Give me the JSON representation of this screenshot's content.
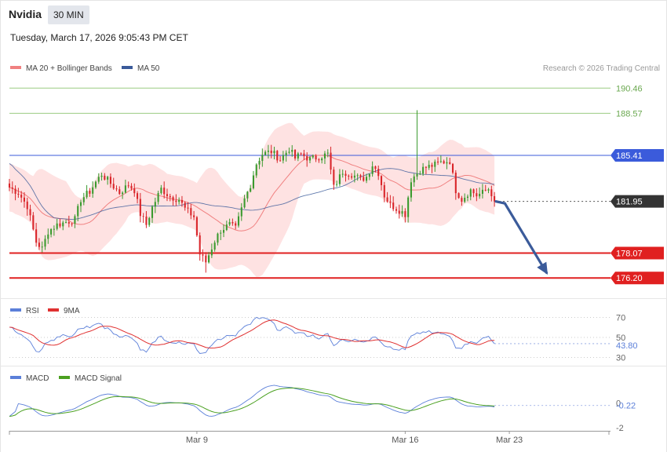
{
  "header": {
    "ticker": "Nvidia",
    "timeframe": "30 MIN",
    "datetime": "Tuesday, March 17, 2026 9:05:43 PM CET"
  },
  "copyright": "Research © 2026 Trading Central",
  "colors": {
    "up": "#3a9a2e",
    "down": "#d9252a",
    "ma20": "#f08080",
    "ma50": "#3a5a9a",
    "band": "#fdd8d8",
    "resistance": "#9ccc82",
    "pivot": "#3b5bdb",
    "support": "#e02020",
    "arrow": "#3b5b9a",
    "rsi": "#5b7fd9",
    "rsi_ma": "#e03030",
    "macd": "#5b7fd9",
    "macd_signal": "#4aa020"
  },
  "chart_data": [
    {
      "type": "candlestick",
      "legend": [
        {
          "label": "MA 20 + Bollinger Bands",
          "color": "#f08080"
        },
        {
          "label": "MA 50",
          "color": "#3a5a9a"
        }
      ],
      "ylim": [
        174.8,
        191.3
      ],
      "xlim": [
        0,
        202
      ],
      "x_ticks": [
        {
          "label": "Mar 9",
          "x": 63
        },
        {
          "label": "Mar 16",
          "x": 133
        },
        {
          "label": "Mar 23",
          "x": 168
        }
      ],
      "levels": [
        {
          "value": 190.46,
          "label": "190.46",
          "kind": "resistance"
        },
        {
          "value": 188.57,
          "label": "188.57",
          "kind": "resistance"
        },
        {
          "value": 185.41,
          "label": "185.41",
          "kind": "pivot"
        },
        {
          "value": 181.95,
          "label": "181.95",
          "kind": "last"
        },
        {
          "value": 178.07,
          "label": "178.07",
          "kind": "support"
        },
        {
          "value": 176.2,
          "label": "176.20",
          "kind": "support"
        }
      ],
      "forecast": [
        [
          163.5,
          181.95
        ],
        [
          166.5,
          181.8
        ],
        [
          180.5,
          176.6
        ]
      ],
      "anchors": [
        [
          0,
          183.0
        ],
        [
          3,
          182.6
        ],
        [
          6,
          181.6
        ],
        [
          9,
          178.9
        ],
        [
          11,
          178.4
        ],
        [
          13,
          179.7
        ],
        [
          16,
          180.2
        ],
        [
          19,
          180.4
        ],
        [
          22,
          180.6
        ],
        [
          24,
          182.1
        ],
        [
          27,
          182.7
        ],
        [
          29,
          183.4
        ],
        [
          31,
          184.0
        ],
        [
          34,
          183.3
        ],
        [
          37,
          182.6
        ],
        [
          40,
          183.2
        ],
        [
          42,
          182.8
        ],
        [
          44,
          181.0
        ],
        [
          46,
          180.2
        ],
        [
          48,
          181.5
        ],
        [
          51,
          182.9
        ],
        [
          54,
          182.3
        ],
        [
          57,
          182.1
        ],
        [
          59,
          181.4
        ],
        [
          62,
          180.8
        ],
        [
          64,
          178.0
        ],
        [
          66,
          177.4
        ],
        [
          69,
          179.0
        ],
        [
          71,
          179.8
        ],
        [
          74,
          180.2
        ],
        [
          76,
          179.9
        ],
        [
          79,
          182.1
        ],
        [
          81,
          183.2
        ],
        [
          83,
          184.8
        ],
        [
          85,
          185.5
        ],
        [
          88,
          185.7
        ],
        [
          91,
          185.1
        ],
        [
          94,
          185.9
        ],
        [
          96,
          185.2
        ],
        [
          98,
          185.5
        ],
        [
          101,
          185.1
        ],
        [
          104,
          185.3
        ],
        [
          107,
          185.5
        ],
        [
          109,
          183.0
        ],
        [
          112,
          184.2
        ],
        [
          115,
          184.0
        ],
        [
          118,
          183.6
        ],
        [
          120,
          183.8
        ],
        [
          122,
          184.7
        ],
        [
          124,
          184.1
        ],
        [
          126,
          182.4
        ],
        [
          128,
          181.7
        ],
        [
          131,
          181.3
        ],
        [
          133,
          181.0
        ],
        [
          135,
          183.6
        ],
        [
          138,
          184.3
        ],
        [
          140,
          184.5
        ],
        [
          143,
          184.7
        ],
        [
          145,
          184.9
        ],
        [
          148,
          185.0
        ],
        [
          150,
          182.8
        ],
        [
          152,
          182.1
        ],
        [
          155,
          182.8
        ],
        [
          157,
          182.4
        ],
        [
          159,
          182.6
        ],
        [
          161,
          182.9
        ],
        [
          163,
          182.2
        ]
      ]
    },
    {
      "type": "line",
      "legend": [
        {
          "label": "RSI",
          "color": "#5b7fd9"
        },
        {
          "label": "9MA",
          "color": "#e03030"
        }
      ],
      "ylim": [
        25,
        75
      ],
      "levels": [
        {
          "value": 70,
          "label": "70"
        },
        {
          "value": 50,
          "label": "50"
        },
        {
          "value": 30,
          "label": "30"
        }
      ],
      "last_value": {
        "value": 43.8,
        "label": "43.80"
      }
    },
    {
      "type": "line",
      "legend": [
        {
          "label": "MACD",
          "color": "#5b7fd9"
        },
        {
          "label": "MACD Signal",
          "color": "#4aa020"
        }
      ],
      "ylim": [
        -2.2,
        1.6
      ],
      "levels": [
        {
          "value": 0,
          "label": "0"
        },
        {
          "value": -2,
          "label": "-2"
        }
      ],
      "last_value": {
        "value": -0.22,
        "label": "-0.22"
      }
    }
  ]
}
